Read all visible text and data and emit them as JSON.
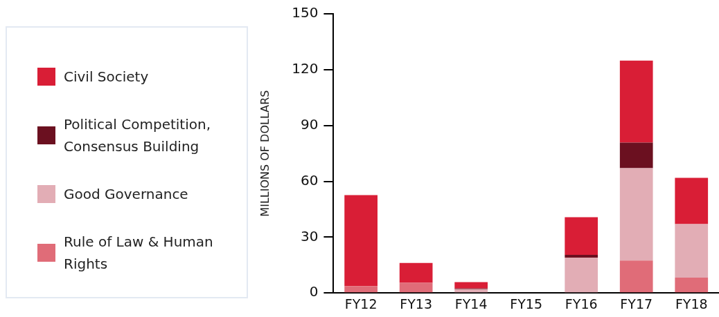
{
  "chart_data": {
    "type": "bar",
    "stacked": true,
    "ylabel": "MILLIONS OF DOLLARS",
    "categories": [
      "FY12",
      "FY13",
      "FY14",
      "FY15",
      "FY16",
      "FY17",
      "FY18"
    ],
    "series": [
      {
        "name": "Rule of Law & Human Rights",
        "color": "#e06c78",
        "values": [
          3.7,
          5.5,
          0,
          null,
          0,
          17.4,
          8.2
        ]
      },
      {
        "name": "Good Governance",
        "color": "#e2adb5",
        "values": [
          0,
          0,
          2.0,
          0,
          19.0,
          49.7,
          28.8
        ]
      },
      {
        "name": "Political Competition, Consensus Building",
        "color": "#6b1020",
        "values": [
          0,
          0,
          0.4,
          0,
          1.5,
          13.7,
          0
        ]
      },
      {
        "name": "Civil Society",
        "color": "#d91e36",
        "values": [
          48.9,
          10.6,
          3.4,
          0,
          20.2,
          44.1,
          24.9
        ]
      }
    ],
    "ylim": [
      0,
      150
    ],
    "yticks": [
      0,
      30,
      60,
      90,
      120,
      150
    ],
    "grid": false,
    "legend": "left"
  }
}
